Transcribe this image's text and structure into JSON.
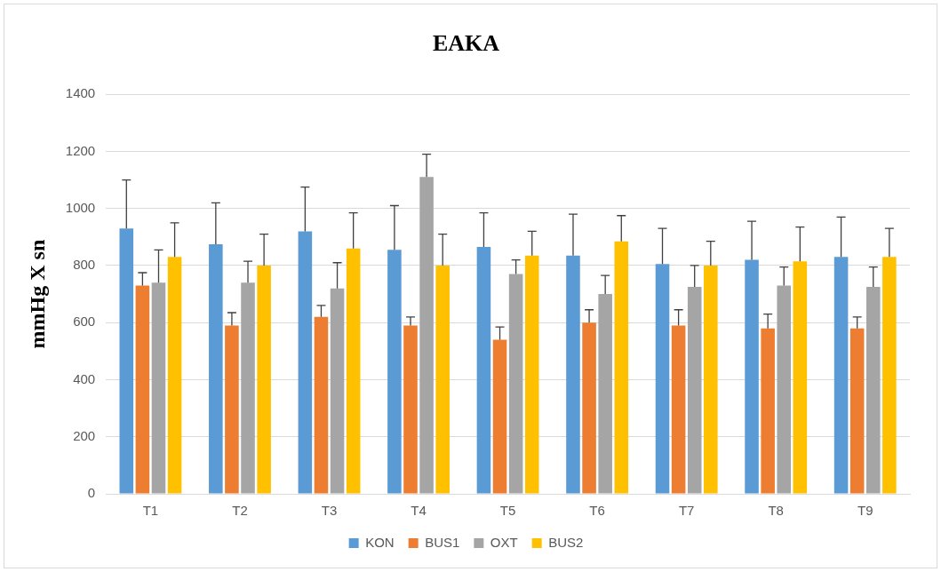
{
  "chart_data": {
    "type": "bar",
    "title": "EAKA",
    "ylabel": "mmHg X sn",
    "categories": [
      "T1",
      "T2",
      "T3",
      "T4",
      "T5",
      "T6",
      "T7",
      "T8",
      "T9"
    ],
    "series": [
      {
        "name": "KON",
        "color": "#5b9bd5",
        "values": [
          930,
          875,
          920,
          855,
          865,
          835,
          805,
          820,
          830
        ],
        "errors": [
          [
            930,
            1100
          ],
          [
            875,
            1020
          ],
          [
            920,
            1075
          ],
          [
            855,
            1010
          ],
          [
            865,
            985
          ],
          [
            835,
            980
          ],
          [
            805,
            930
          ],
          [
            820,
            955
          ],
          [
            830,
            970
          ]
        ]
      },
      {
        "name": "BUS1",
        "color": "#ed7d31",
        "values": [
          730,
          590,
          620,
          590,
          540,
          600,
          590,
          580,
          580
        ],
        "errors": [
          [
            730,
            775
          ],
          [
            590,
            635
          ],
          [
            620,
            660
          ],
          [
            590,
            620
          ],
          [
            540,
            585
          ],
          [
            600,
            645
          ],
          [
            590,
            645
          ],
          [
            580,
            630
          ],
          [
            580,
            620
          ]
        ]
      },
      {
        "name": "OXT",
        "color": "#a5a5a5",
        "values": [
          740,
          740,
          720,
          1110,
          770,
          700,
          725,
          730,
          725
        ],
        "errors": [
          [
            740,
            855
          ],
          [
            740,
            815
          ],
          [
            720,
            810
          ],
          [
            1110,
            1190
          ],
          [
            770,
            820
          ],
          [
            700,
            765
          ],
          [
            725,
            800
          ],
          [
            730,
            795
          ],
          [
            725,
            795
          ]
        ]
      },
      {
        "name": "BUS2",
        "color": "#ffc000",
        "values": [
          830,
          800,
          860,
          800,
          835,
          885,
          800,
          815,
          830
        ],
        "errors": [
          [
            830,
            950
          ],
          [
            800,
            910
          ],
          [
            860,
            985
          ],
          [
            800,
            910
          ],
          [
            835,
            920
          ],
          [
            885,
            975
          ],
          [
            800,
            885
          ],
          [
            815,
            935
          ],
          [
            830,
            930
          ]
        ]
      }
    ],
    "ylim": [
      0,
      1400
    ],
    "yticks": [
      0,
      200,
      400,
      600,
      800,
      1000,
      1200,
      1400
    ],
    "grid": "y",
    "legend": "bottom"
  }
}
